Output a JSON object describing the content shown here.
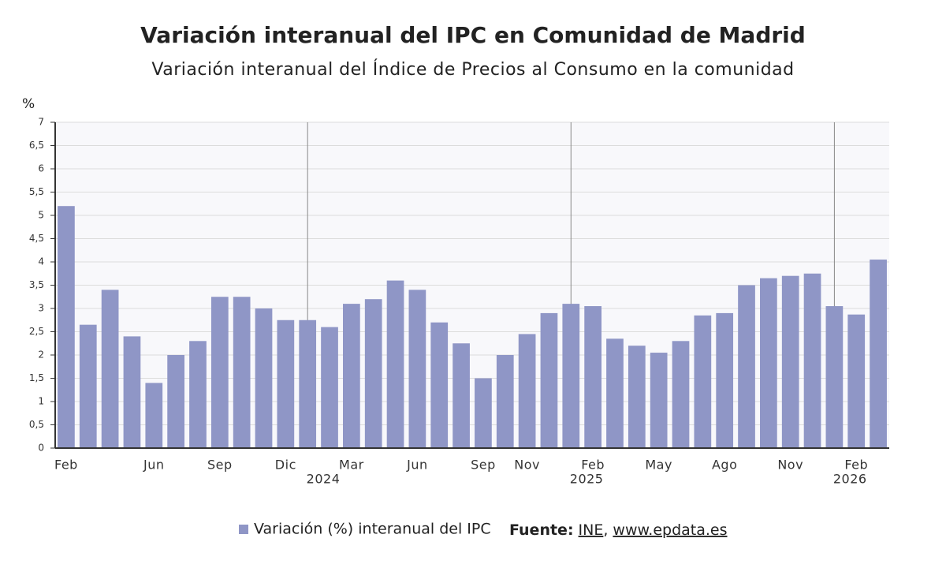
{
  "chart_data": {
    "type": "bar",
    "title": "Variación interanual del IPC en Comunidad de Madrid",
    "subtitle": "Variación interanual del Índice de Precios al Consumo en la comunidad",
    "y_label": "%",
    "categories": [
      "Feb",
      null,
      null,
      null,
      "Jun",
      null,
      null,
      "Sep",
      null,
      null,
      "Dic",
      null,
      null,
      "Mar",
      null,
      null,
      "Jun",
      null,
      null,
      "Sep",
      null,
      "Nov",
      null,
      null,
      "Feb",
      null,
      null,
      "May",
      null,
      null,
      "Ago",
      null,
      null,
      "Nov",
      null,
      null,
      "Feb",
      null
    ],
    "categories2": [
      null,
      null,
      null,
      null,
      null,
      null,
      null,
      null,
      null,
      null,
      null,
      null,
      "2024",
      null,
      null,
      null,
      null,
      null,
      null,
      null,
      null,
      null,
      null,
      null,
      "2025",
      null,
      null,
      null,
      null,
      null,
      null,
      null,
      null,
      null,
      null,
      null,
      "2026",
      null
    ],
    "series": [
      {
        "name": "Variación (%) interanual del IPC",
        "color": "#8f96c6",
        "values": [
          5.2,
          2.65,
          3.4,
          2.4,
          1.4,
          2.0,
          2.3,
          3.25,
          3.25,
          3.0,
          2.75,
          2.75,
          2.6,
          3.1,
          3.2,
          3.6,
          3.4,
          2.7,
          2.25,
          1.5,
          2.0,
          2.45,
          2.9,
          3.1,
          3.05,
          2.35,
          2.2,
          2.05,
          2.3,
          2.85,
          2.9,
          3.5,
          3.65,
          3.7,
          3.75,
          3.05,
          2.87,
          4.05
        ]
      }
    ],
    "ylim": [
      0,
      7
    ],
    "yticks": [
      0,
      {
        "value": 0.5,
        "label": "0,5"
      },
      1,
      {
        "value": 1.5,
        "label": "1,5"
      },
      2,
      {
        "value": 2.5,
        "label": "2,5"
      },
      3,
      {
        "value": 3.5,
        "label": "3,5"
      },
      4,
      {
        "value": 4.5,
        "label": "4,5"
      },
      5,
      {
        "value": 5.5,
        "label": "5,5"
      },
      6,
      {
        "value": 6.5,
        "label": "6,5"
      },
      7
    ],
    "grid": true,
    "legend": "bottom",
    "source": {
      "label": "Fuente:",
      "items": [
        "INE",
        "www.epdata.es"
      ],
      "separator": ","
    }
  }
}
